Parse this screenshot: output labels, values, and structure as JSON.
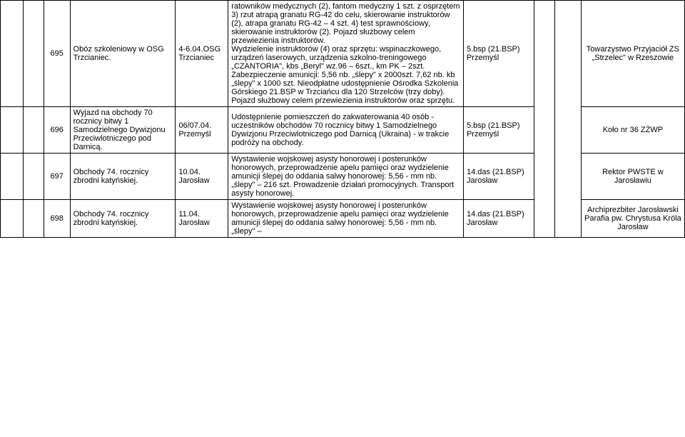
{
  "rows": [
    {
      "num": "695",
      "c3": "Obóz szkoleniowy w OSG Trzcianiec.",
      "c4": "4-6.04.OSG Trzcianiec",
      "c5": "ratowników medycznych (2), fantom medyczny 1 szt. z osprzętem 3) rzut atrapą granatu RG-42 do celu, skierowanie instruktorów (2), atrapa granatu RG-42 – 4 szt. 4) test sprawnościowy, skierowanie instruktorów (2). Pojazd służbowy celem przewiezienia instruktorów.\nWydzielenie instruktorów (4) oraz sprzętu: wspinaczkowego, urządzeń laserowych, urządzenia szkolno-treningowego „CZANTORIA\", kbs „Beryl\" wz.96 – 6szt., km PK – 2szt. Zabezpieczenie amunicji: 5,56 nb. „ślepy\" x 2000szt. 7,62 nb. kb „ślepy\" x 1000 szt. Nieodpłatne udostępnienie Ośrodka Szkolenia Górskiego 21.BSP w Trzciańcu dla 120 Strzelców (trzy doby). Pojazd służbowy celem przewiezienia instruktorów oraz sprzętu.",
      "c6": "5.bsp (21.BSP) Przemyśl",
      "c9": "Towarzystwo Przyjaciół ZS „Strzelec\" w Rzeszowie"
    },
    {
      "num": "696",
      "c3": "Wyjazd na obchody 70 rocznicy bitwy 1 Samodzielnego Dywizjonu Przeciwlotniczego pod Darnicą.",
      "c4": "06/07.04. Przemyśl",
      "c5": "Udostępnienie pomieszczeń do zakwaterowania 40 osób - uczestników obchodów 70 rocznicy bitwy 1 Samodzielnego Dywizjonu Przeciwlotniczego pod Darnicą (Ukraina) - w trakcie podróży na obchody.",
      "c6": "5.bsp (21.BSP) Przemyśl",
      "c9": "Koło nr 36 ZŻWP"
    },
    {
      "num": "697",
      "c3": "Obchody 74. rocznicy zbrodni katyńskiej.",
      "c4": "10.04. Jarosław",
      "c5": "Wystawienie wojskowej asysty honorowej i posterunków honorowych, przeprowadzenie apelu pamięci oraz wydzielenie amunicji ślepej do oddania salwy honorowej: 5,56 - mm nb. „ślepy\" – 216 szt. Prowadzenie działań promocyjnych. Transport asysty honorowej.",
      "c6": "14.das (21.BSP) Jarosław",
      "c9": "Rektor PWSTE w Jarosławiu"
    },
    {
      "num": "698",
      "c3": "Obchody 74. rocznicy zbrodni katyńskiej.",
      "c4": "11.04. Jarosław",
      "c5": "Wystawienie wojskowej asysty honorowej i posterunków honorowych, przeprowadzenie apelu pamięci oraz wydzielenie amunicji ślepej do oddania salwy honorowej: 5,56 - mm nb. „ślepy\" –",
      "c6": "14.das (21.BSP) Jarosław",
      "c9": "Archiprezbiter Jarosławski Parafia pw. Chrystusa Króla Jarosław"
    }
  ]
}
